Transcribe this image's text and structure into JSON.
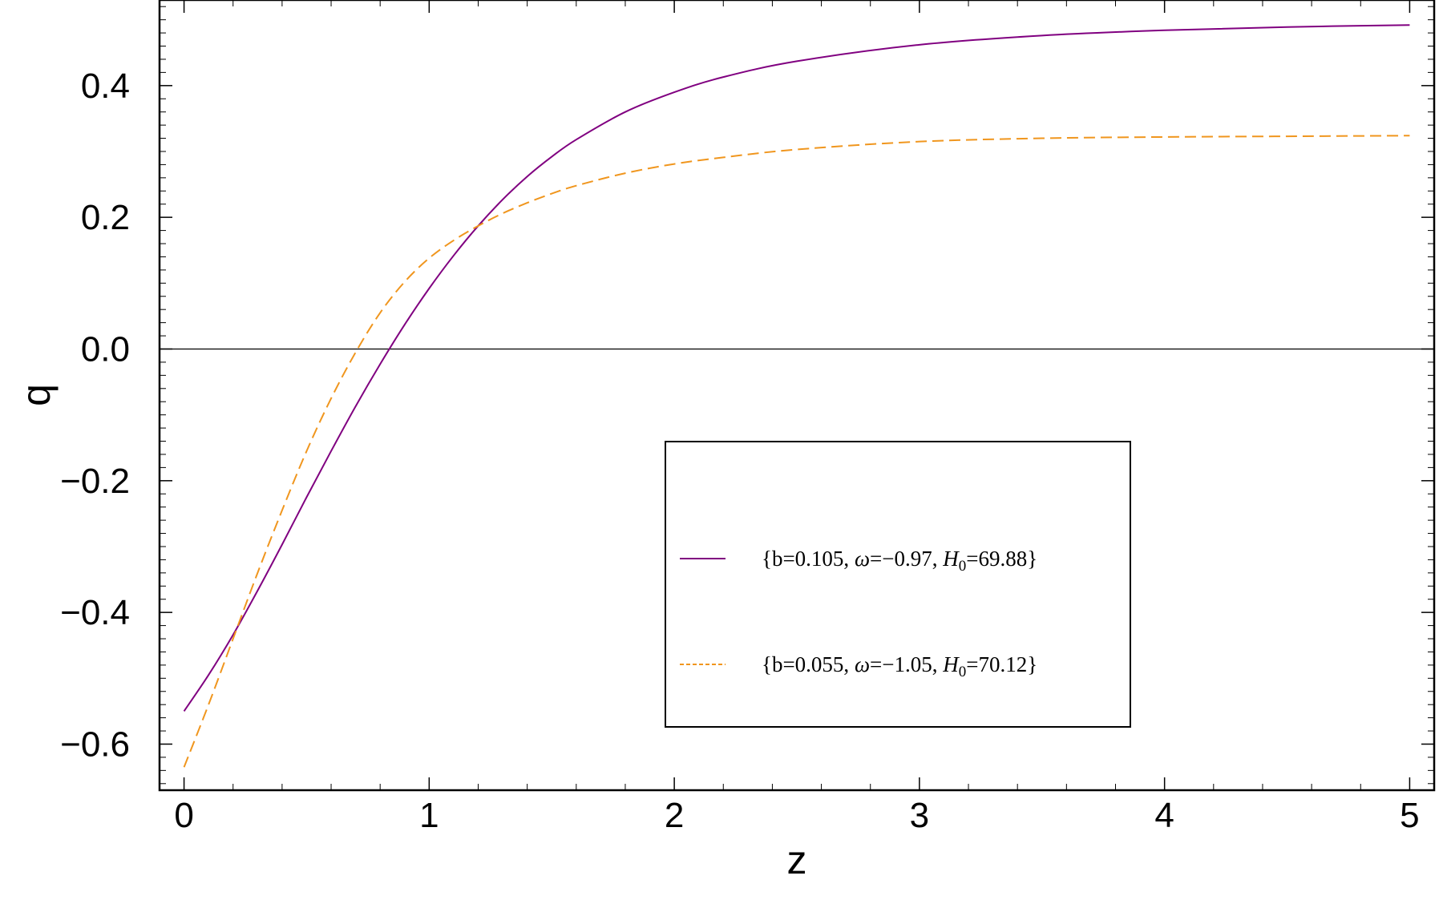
{
  "chart_data": {
    "type": "line",
    "xlabel": "z",
    "ylabel": "q",
    "xlim": [
      -0.1,
      5.1
    ],
    "ylim": [
      -0.67,
      0.53
    ],
    "xticks": [
      0,
      1,
      2,
      3,
      4,
      5
    ],
    "xtick_labels": [
      "0",
      "1",
      "2",
      "3",
      "4",
      "5"
    ],
    "yticks": [
      -0.6,
      -0.4,
      -0.2,
      0.0,
      0.2,
      0.4
    ],
    "ytick_labels": [
      "−0.6",
      "−0.4",
      "−0.2",
      "0.0",
      "0.2",
      "0.4"
    ],
    "zero_line": true,
    "grid": false,
    "legend_placement": "center-right",
    "series": [
      {
        "legend_prefix": "{b=0.105, ",
        "legend_omega": "ω",
        "legend_mid": "=−0.97, ",
        "legend_H": "H",
        "legend_sub": "0",
        "legend_suffix": "=69.88}",
        "color": "#800080",
        "style": "solid",
        "x": [
          0,
          0.1,
          0.2,
          0.3,
          0.4,
          0.5,
          0.6,
          0.7,
          0.8,
          0.9,
          1.0,
          1.1,
          1.2,
          1.3,
          1.4,
          1.5,
          1.6,
          1.8,
          2.0,
          2.2,
          2.5,
          3.0,
          3.5,
          4.0,
          4.5,
          5.0
        ],
        "y": [
          -0.55,
          -0.495,
          -0.434,
          -0.367,
          -0.297,
          -0.225,
          -0.155,
          -0.087,
          -0.023,
          0.037,
          0.092,
          0.142,
          0.187,
          0.227,
          0.262,
          0.292,
          0.318,
          0.36,
          0.39,
          0.413,
          0.437,
          0.462,
          0.476,
          0.484,
          0.489,
          0.492
        ]
      },
      {
        "legend_prefix": "{b=0.055, ",
        "legend_omega": "ω",
        "legend_mid": "=−1.05, ",
        "legend_H": "H",
        "legend_sub": "0",
        "legend_suffix": "=70.12}",
        "color": "#f0961e",
        "style": "dashed",
        "x": [
          0,
          0.1,
          0.2,
          0.3,
          0.4,
          0.5,
          0.6,
          0.7,
          0.8,
          0.9,
          1.0,
          1.1,
          1.2,
          1.3,
          1.4,
          1.5,
          1.6,
          1.8,
          2.0,
          2.2,
          2.5,
          3.0,
          3.5,
          4.0,
          4.5,
          5.0
        ],
        "y": [
          -0.635,
          -0.54,
          -0.44,
          -0.34,
          -0.245,
          -0.155,
          -0.075,
          -0.005,
          0.055,
          0.102,
          0.138,
          0.165,
          0.187,
          0.206,
          0.222,
          0.236,
          0.248,
          0.267,
          0.281,
          0.291,
          0.303,
          0.315,
          0.32,
          0.322,
          0.323,
          0.324
        ]
      }
    ]
  }
}
